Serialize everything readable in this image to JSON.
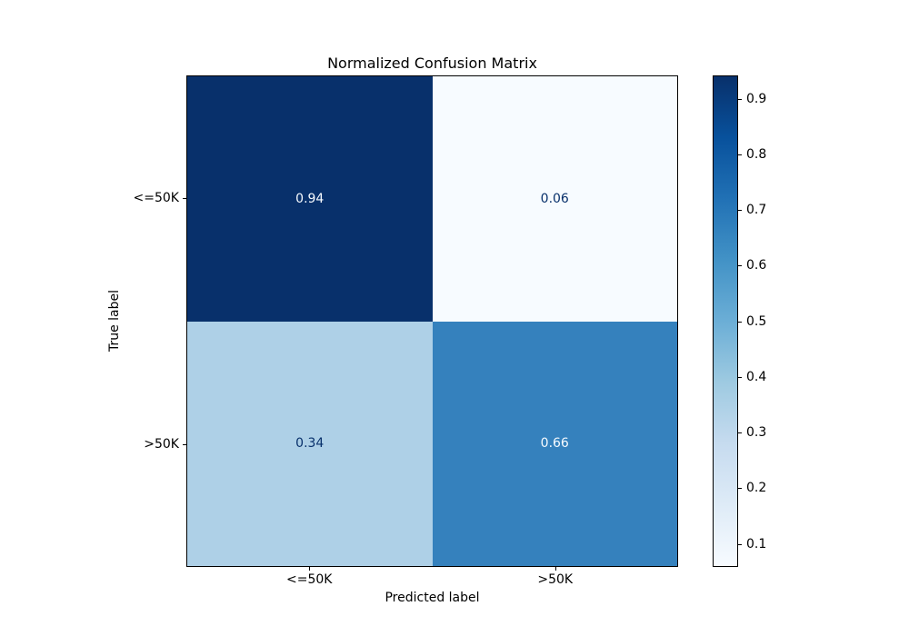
{
  "figure": {
    "background": "#ffffff"
  },
  "chart_data": {
    "type": "heatmap",
    "title": "Normalized Confusion Matrix",
    "xlabel": "Predicted label",
    "ylabel": "True label",
    "x_tick_labels": [
      "<=50K",
      ">50K"
    ],
    "y_tick_labels": [
      "<=50K",
      ">50K"
    ],
    "matrix": [
      [
        0.94,
        0.06
      ],
      [
        0.34,
        0.66
      ]
    ],
    "cell_text": [
      [
        "0.94",
        "0.06"
      ],
      [
        "0.34",
        "0.66"
      ]
    ],
    "cell_colors": [
      [
        "#08306b",
        "#f7fbff"
      ],
      [
        "#aed0e7",
        "#3581bd"
      ]
    ],
    "cell_text_colors": [
      [
        "#f7fbff",
        "#08306b"
      ],
      [
        "#08306b",
        "#f7fbff"
      ]
    ],
    "vmin": 0.06,
    "vmax": 0.94,
    "colorbar_ticks": [
      "0.9",
      "0.8",
      "0.7",
      "0.6",
      "0.5",
      "0.4",
      "0.3",
      "0.2",
      "0.1"
    ],
    "colormap_name": "Blues",
    "colormap_stops": [
      "#f7fbff",
      "#deebf7",
      "#c6dbef",
      "#9ecae1",
      "#6baed6",
      "#4292c6",
      "#2171b5",
      "#08519c",
      "#08306b"
    ],
    "grid": false,
    "legend_position": "right-colorbar"
  }
}
